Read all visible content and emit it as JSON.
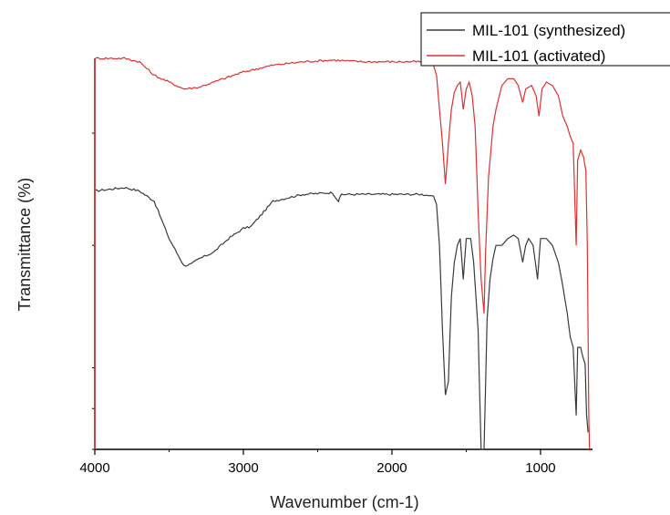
{
  "chart_data": {
    "type": "line",
    "xlabel": "Wavenumber (cm-1)",
    "ylabel": "Transmittance (%)",
    "xlim": [
      4000,
      650
    ],
    "x_reversed": true,
    "x_ticks": [
      4000,
      3000,
      2000,
      1000
    ],
    "y_tick_labels_shown": false,
    "grid": false,
    "legend_position": "top-right",
    "series": [
      {
        "name": "MIL-101 (synthesized)",
        "color": "#3a3a3a",
        "points": [
          [
            4000,
            0.76
          ],
          [
            3800,
            0.77
          ],
          [
            3700,
            0.76
          ],
          [
            3600,
            0.73
          ],
          [
            3500,
            0.62
          ],
          [
            3400,
            0.54
          ],
          [
            3350,
            0.545
          ],
          [
            3300,
            0.56
          ],
          [
            3200,
            0.58
          ],
          [
            3100,
            0.62
          ],
          [
            3000,
            0.65
          ],
          [
            2950,
            0.655
          ],
          [
            2900,
            0.68
          ],
          [
            2800,
            0.73
          ],
          [
            2600,
            0.75
          ],
          [
            2400,
            0.755
          ],
          [
            2360,
            0.73
          ],
          [
            2340,
            0.75
          ],
          [
            2200,
            0.75
          ],
          [
            2000,
            0.75
          ],
          [
            1800,
            0.75
          ],
          [
            1720,
            0.745
          ],
          [
            1700,
            0.72
          ],
          [
            1680,
            0.6
          ],
          [
            1660,
            0.35
          ],
          [
            1640,
            0.16
          ],
          [
            1620,
            0.2
          ],
          [
            1600,
            0.45
          ],
          [
            1580,
            0.55
          ],
          [
            1560,
            0.6
          ],
          [
            1540,
            0.62
          ],
          [
            1520,
            0.5
          ],
          [
            1500,
            0.62
          ],
          [
            1470,
            0.62
          ],
          [
            1450,
            0.55
          ],
          [
            1420,
            0.35
          ],
          [
            1400,
            0.0
          ],
          [
            1380,
            0.0
          ],
          [
            1360,
            0.38
          ],
          [
            1340,
            0.5
          ],
          [
            1320,
            0.56
          ],
          [
            1300,
            0.6
          ],
          [
            1260,
            0.6
          ],
          [
            1220,
            0.62
          ],
          [
            1180,
            0.63
          ],
          [
            1150,
            0.62
          ],
          [
            1120,
            0.55
          ],
          [
            1100,
            0.6
          ],
          [
            1080,
            0.62
          ],
          [
            1050,
            0.6
          ],
          [
            1020,
            0.5
          ],
          [
            1000,
            0.62
          ],
          [
            960,
            0.62
          ],
          [
            920,
            0.6
          ],
          [
            880,
            0.55
          ],
          [
            850,
            0.48
          ],
          [
            820,
            0.4
          ],
          [
            800,
            0.33
          ],
          [
            780,
            0.3
          ],
          [
            760,
            0.1
          ],
          [
            750,
            0.3
          ],
          [
            730,
            0.3
          ],
          [
            720,
            0.28
          ],
          [
            700,
            0.25
          ],
          [
            690,
            0.1
          ],
          [
            680,
            0.05
          ]
        ]
      },
      {
        "name": "MIL-101 (activated)",
        "color": "#e03030",
        "points": [
          [
            4000,
            1.15
          ],
          [
            3800,
            1.15
          ],
          [
            3700,
            1.14
          ],
          [
            3600,
            1.1
          ],
          [
            3500,
            1.08
          ],
          [
            3400,
            1.06
          ],
          [
            3300,
            1.065
          ],
          [
            3200,
            1.08
          ],
          [
            3000,
            1.11
          ],
          [
            2800,
            1.13
          ],
          [
            2600,
            1.14
          ],
          [
            2400,
            1.145
          ],
          [
            2200,
            1.14
          ],
          [
            2000,
            1.14
          ],
          [
            1800,
            1.14
          ],
          [
            1720,
            1.13
          ],
          [
            1700,
            1.1
          ],
          [
            1680,
            1.0
          ],
          [
            1660,
            0.9
          ],
          [
            1640,
            0.78
          ],
          [
            1620,
            0.9
          ],
          [
            1600,
            1.0
          ],
          [
            1580,
            1.05
          ],
          [
            1560,
            1.07
          ],
          [
            1540,
            1.08
          ],
          [
            1520,
            1.0
          ],
          [
            1500,
            1.06
          ],
          [
            1480,
            1.08
          ],
          [
            1460,
            1.04
          ],
          [
            1440,
            0.95
          ],
          [
            1420,
            0.7
          ],
          [
            1400,
            0.5
          ],
          [
            1380,
            0.4
          ],
          [
            1370,
            0.58
          ],
          [
            1350,
            0.8
          ],
          [
            1320,
            0.95
          ],
          [
            1300,
            1.0
          ],
          [
            1260,
            1.07
          ],
          [
            1220,
            1.09
          ],
          [
            1180,
            1.09
          ],
          [
            1150,
            1.07
          ],
          [
            1120,
            1.02
          ],
          [
            1100,
            1.06
          ],
          [
            1060,
            1.07
          ],
          [
            1030,
            1.04
          ],
          [
            1010,
            0.98
          ],
          [
            990,
            1.06
          ],
          [
            960,
            1.08
          ],
          [
            920,
            1.07
          ],
          [
            880,
            1.04
          ],
          [
            850,
            0.98
          ],
          [
            820,
            0.95
          ],
          [
            800,
            0.92
          ],
          [
            780,
            0.9
          ],
          [
            760,
            0.6
          ],
          [
            750,
            0.85
          ],
          [
            730,
            0.88
          ],
          [
            710,
            0.86
          ],
          [
            695,
            0.82
          ],
          [
            685,
            0.6
          ],
          [
            675,
            0.1
          ],
          [
            670,
            0.0
          ]
        ]
      }
    ]
  }
}
